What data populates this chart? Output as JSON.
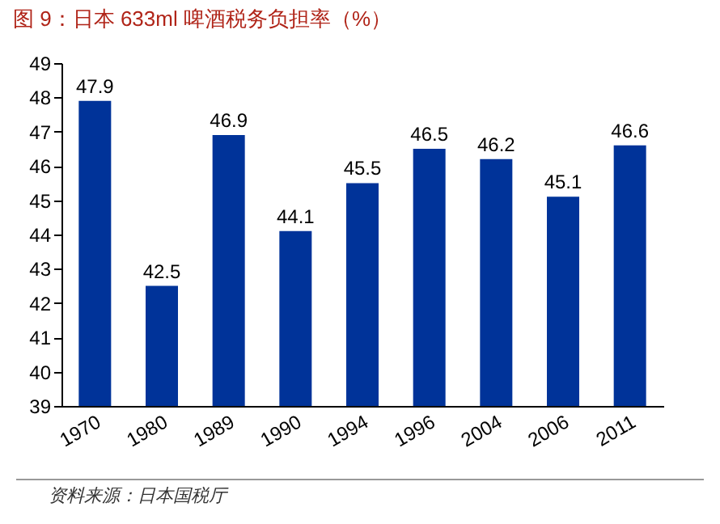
{
  "chart_data": {
    "type": "bar",
    "title": "图 9：日本 633ml 啤酒税务负担率（%）",
    "categories": [
      "1970",
      "1980",
      "1989",
      "1990",
      "1994",
      "1996",
      "2004",
      "2006",
      "2011"
    ],
    "values": [
      47.9,
      42.5,
      46.9,
      44.1,
      45.5,
      46.5,
      46.2,
      45.1,
      46.6
    ],
    "color": "#003399",
    "ylim": [
      39,
      49
    ],
    "yticks": [
      39,
      40,
      41,
      42,
      43,
      44,
      45,
      46,
      47,
      48,
      49
    ],
    "data_labels": true,
    "grid": false,
    "annotations": [
      "资料来源：日本国税厅"
    ]
  }
}
